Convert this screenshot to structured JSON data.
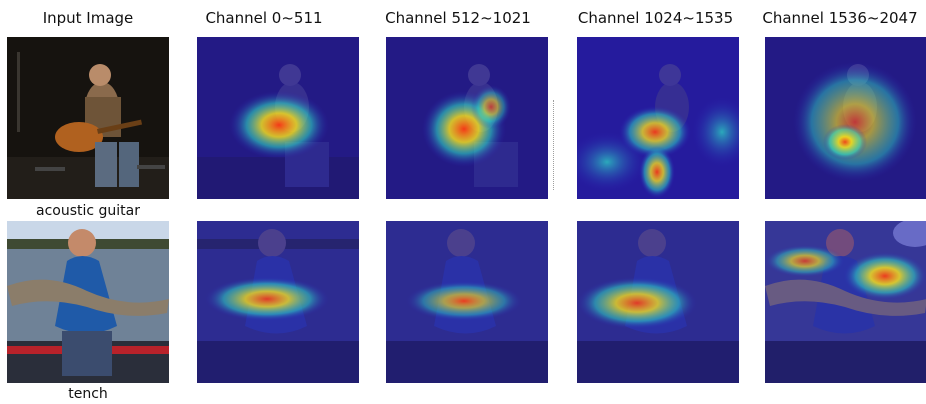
{
  "headers": [
    "Input Image",
    "Channel 0~511",
    "Channel 512~1021",
    "Channel 1024~1535",
    "Channel 1536~2047"
  ],
  "rows": [
    {
      "label": "acoustic guitar"
    },
    {
      "label": "tench"
    }
  ],
  "colors": {
    "heatmap_low": "#2a1fb8",
    "heatmap_mid": "#2ee6c8",
    "heatmap_high": "#ff3b12",
    "heatmap_hot": "#ffe817"
  }
}
